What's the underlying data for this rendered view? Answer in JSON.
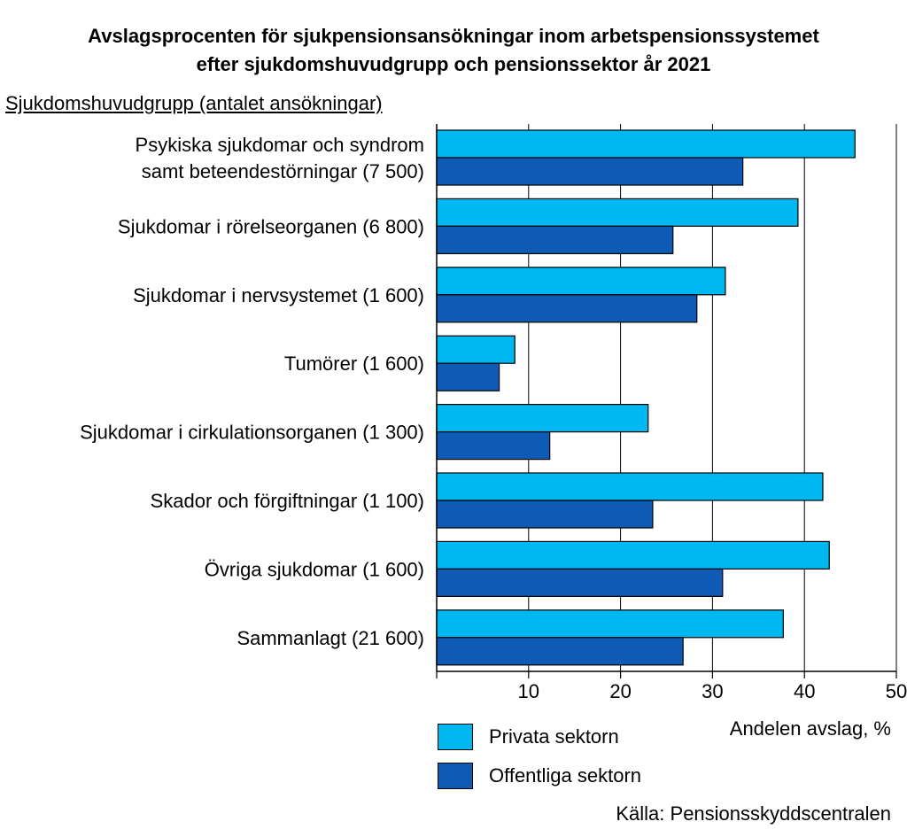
{
  "chart_data": {
    "type": "bar",
    "orientation": "horizontal",
    "title": [
      "Avslagsprocenten för sjukpensionsansökningar inom arbetspensionssystemet",
      "efter sjukdomshuvudgrupp och pensionssektor år 2021"
    ],
    "category_heading": "Sjukdomshuvudgrupp (antalet ansökningar)",
    "categories": [
      [
        "Psykiska sjukdomar och syndrom",
        "samt beteendestörningar (7 500)"
      ],
      [
        "Sjukdomar i rörelseorganen (6 800)"
      ],
      [
        "Sjukdomar i nervsystemet (1 600)"
      ],
      [
        "Tumörer (1 600)"
      ],
      [
        "Sjukdomar i cirkulationsorganen (1 300)"
      ],
      [
        "Skador och förgiftningar (1 100)"
      ],
      [
        "Övriga sjukdomar (1 600)"
      ],
      [
        "Sammanlagt (21 600)"
      ]
    ],
    "series": [
      {
        "name": "Privata sektorn",
        "color": "#00B8F1",
        "values": [
          45.5,
          39.3,
          31.4,
          8.5,
          23.0,
          42.0,
          42.7,
          37.7
        ]
      },
      {
        "name": "Offentliga sektorn",
        "color": "#0E5BB5",
        "values": [
          33.3,
          25.7,
          28.3,
          6.8,
          12.3,
          23.5,
          31.1,
          26.8
        ]
      }
    ],
    "xlabel": "Andelen avslag, %",
    "xlim": [
      0,
      50
    ],
    "xticks": [
      0,
      10,
      20,
      30,
      40,
      50
    ],
    "grid": true,
    "legend_position": "bottom",
    "source": "Källa: Pensionsskyddscentralen"
  }
}
